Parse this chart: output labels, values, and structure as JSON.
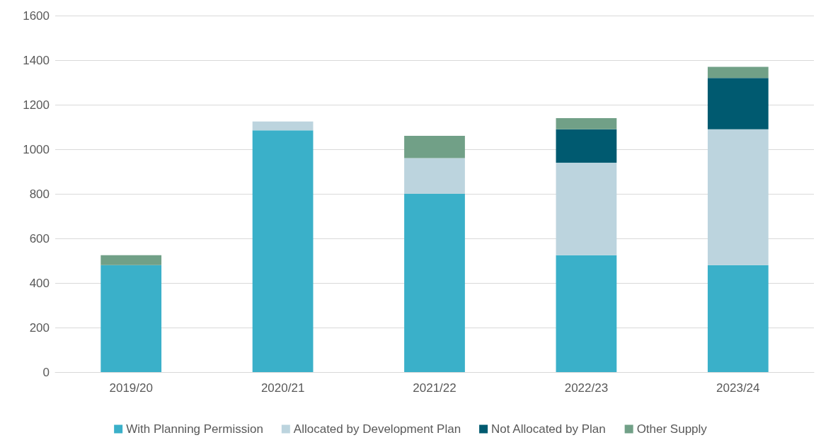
{
  "chart_data": {
    "type": "bar",
    "stacked": true,
    "categories": [
      "2019/20",
      "2020/21",
      "2021/22",
      "2022/23",
      "2023/24"
    ],
    "series": [
      {
        "name": "With Planning Permission",
        "color": "#3ab0c9",
        "values": [
          480,
          1085,
          800,
          525,
          480
        ]
      },
      {
        "name": "Allocated by Development Plan",
        "color": "#bcd4de",
        "values": [
          null,
          40,
          160,
          415,
          610
        ]
      },
      {
        "name": "Not Allocated by Plan",
        "color": "#005a70",
        "values": [
          null,
          null,
          null,
          150,
          230
        ]
      },
      {
        "name": "Other Supply",
        "color": "#71a087",
        "values": [
          45,
          null,
          100,
          50,
          50
        ]
      }
    ],
    "ylim": [
      0,
      1600
    ],
    "yticks": [
      0,
      200,
      400,
      600,
      800,
      1000,
      1200,
      1400,
      1600
    ],
    "grid": "y",
    "legend": "bottom"
  }
}
